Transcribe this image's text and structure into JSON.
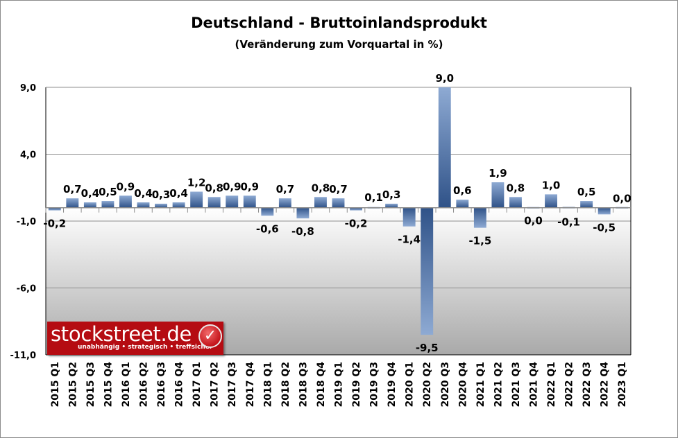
{
  "chart_data": {
    "type": "bar",
    "title": "Deutschland - Bruttoinlandsprodukt",
    "subtitle": "(Veränderung zum Vorquartal in %)",
    "categories": [
      "2015 Q1",
      "2015 Q2",
      "2015 Q3",
      "2015 Q4",
      "2016 Q1",
      "2016 Q2",
      "2016 Q3",
      "2016 Q4",
      "2017 Q1",
      "2017 Q2",
      "2017 Q3",
      "2017 Q4",
      "2018 Q1",
      "2018 Q2",
      "2018 Q3",
      "2018 Q4",
      "2019 Q1",
      "2019 Q2",
      "2019 Q3",
      "2019 Q4",
      "2020 Q1",
      "2020 Q2",
      "2020 Q3",
      "2020 Q4",
      "2021 Q1",
      "2021 Q2",
      "2021 Q3",
      "2021 Q4",
      "2022 Q1",
      "2022 Q2",
      "2022 Q3",
      "2022 Q4",
      "2023 Q1"
    ],
    "values": [
      -0.2,
      0.7,
      0.4,
      0.5,
      0.9,
      0.4,
      0.3,
      0.4,
      1.2,
      0.8,
      0.9,
      0.9,
      -0.6,
      0.7,
      -0.8,
      0.8,
      0.7,
      -0.2,
      0.1,
      0.3,
      -1.4,
      -9.5,
      9.0,
      0.6,
      -1.5,
      1.9,
      0.8,
      0.0,
      1.0,
      -0.1,
      0.5,
      -0.5,
      0.0
    ],
    "data_labels": [
      "-0,2",
      "0,7",
      "0,4",
      "0,5",
      "0,9",
      "0,4",
      "0,3",
      "0,4",
      "1,2",
      "0,8",
      "0,9",
      "0,9",
      "-0,6",
      "0,7",
      "-0,8",
      "0,8",
      "0,7",
      "-0,2",
      "0,1",
      "0,3",
      "-1,4",
      "-9,5",
      "9,0",
      "0,6",
      "-1,5",
      "1,9",
      "0,8",
      "0,0",
      "1,0",
      "-0,1",
      "0,5",
      "-0,5",
      "0,0"
    ],
    "yticks": [
      9,
      4,
      -1,
      -6,
      -11
    ],
    "ytick_labels": [
      "9,0",
      "4,0",
      "-1,0",
      "-6,0",
      "-11,0"
    ],
    "ylim": [
      -11,
      9
    ],
    "grid": true,
    "legend": "none",
    "bar_color": "#2f5288",
    "bar_highlight": "#8eaad3"
  },
  "logo": {
    "text": "stockstreet.de",
    "tagline": "unabhängig • strategisch • treffsicher"
  }
}
